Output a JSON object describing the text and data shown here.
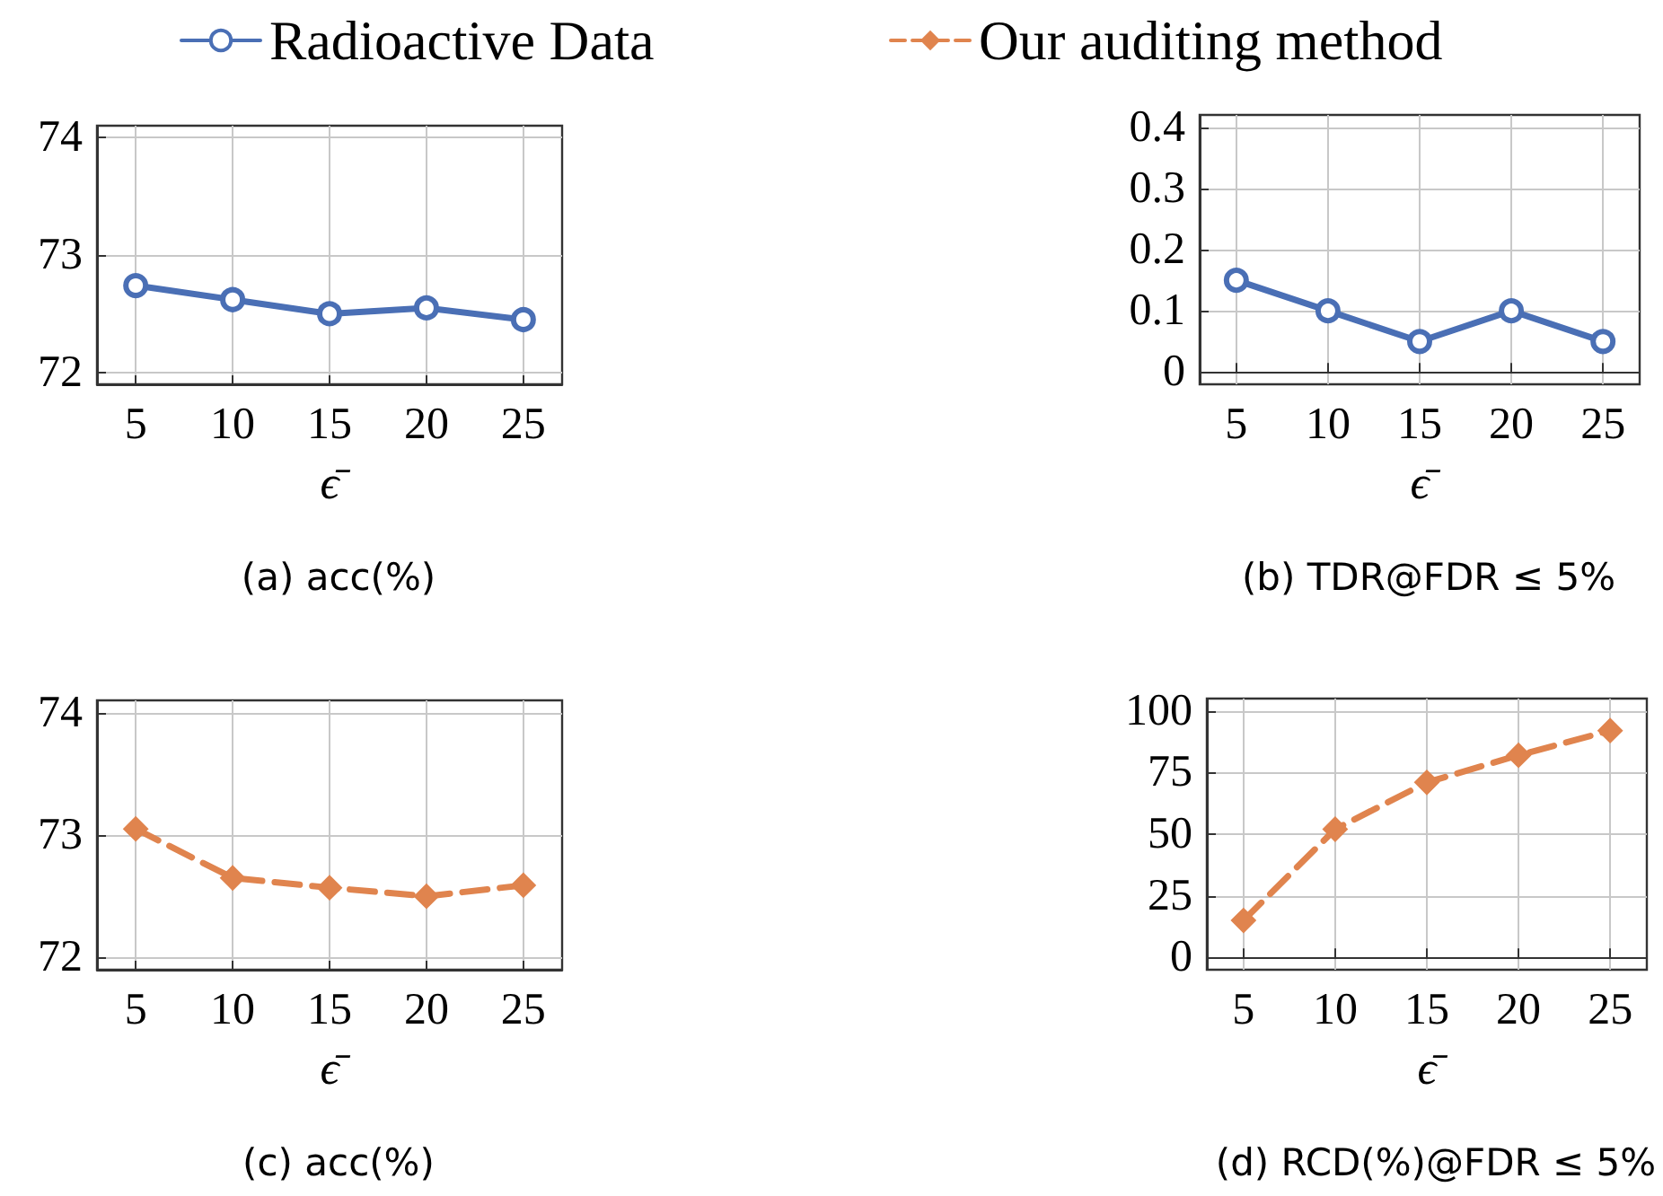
{
  "chart_data": [
    {
      "type": "line",
      "title": "(a) acc(%)",
      "xlabel": "ϵ̄",
      "x": [
        5,
        10,
        15,
        20,
        25
      ],
      "xlim": [
        3,
        27
      ],
      "xticks": [
        5,
        10,
        15,
        20,
        25
      ],
      "ylim": [
        71.9,
        74.1
      ],
      "yticks": [
        72,
        73,
        74
      ],
      "grid": true,
      "legend": "top",
      "marker": "circle",
      "line_style": "solid",
      "series": [
        {
          "name": "Radioactive Data",
          "color": "#4a6fb5",
          "values": [
            72.74,
            72.62,
            72.5,
            72.55,
            72.45
          ]
        }
      ]
    },
    {
      "type": "line",
      "title": "(b) TDR@FDR ≤ 5%",
      "xlabel": "ϵ̄",
      "x": [
        5,
        10,
        15,
        20,
        25
      ],
      "xlim": [
        3,
        27
      ],
      "xticks": [
        5,
        10,
        15,
        20,
        25
      ],
      "ylim": [
        -0.02,
        0.42
      ],
      "yticks": [
        0,
        0.1,
        0.2,
        0.3,
        0.4
      ],
      "grid": true,
      "marker": "circle",
      "line_style": "solid",
      "series": [
        {
          "color": "#4a6fb5",
          "values": [
            0.15,
            0.1,
            0.05,
            0.1,
            0.05
          ]
        }
      ]
    },
    {
      "type": "line",
      "title": "(c) acc(%)",
      "xlabel": "ϵ̄",
      "x": [
        5,
        10,
        15,
        20,
        25
      ],
      "xlim": [
        3,
        27
      ],
      "xticks": [
        5,
        10,
        15,
        20,
        25
      ],
      "ylim": [
        71.9,
        74.1
      ],
      "yticks": [
        72,
        73,
        74
      ],
      "grid": true,
      "legend": "top",
      "marker": "diamond",
      "line_style": "dashed",
      "series": [
        {
          "name": "Our auditing method",
          "color": "#e0844e",
          "values": [
            73.05,
            72.65,
            72.57,
            72.5,
            72.59
          ]
        }
      ]
    },
    {
      "type": "line",
      "title": "(d) RCD(%)@FDR ≤ 5%",
      "xlabel": "ϵ̄",
      "x": [
        5,
        10,
        15,
        20,
        25
      ],
      "xlim": [
        3,
        27
      ],
      "xticks": [
        5,
        10,
        15,
        20,
        25
      ],
      "ylim": [
        -5,
        105
      ],
      "yticks": [
        0,
        25,
        50,
        75,
        100
      ],
      "grid": true,
      "marker": "diamond",
      "line_style": "dashed",
      "series": [
        {
          "color": "#e0844e",
          "values": [
            15,
            52,
            71,
            82,
            92
          ]
        }
      ]
    }
  ]
}
